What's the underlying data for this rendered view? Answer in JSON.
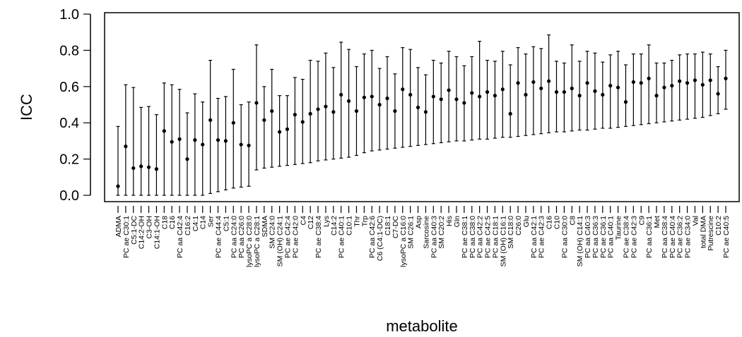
{
  "chart_data": {
    "type": "scatter",
    "subtype": "point-with-error-bars",
    "title": "",
    "xlabel": "metabolite",
    "ylabel": "ICC",
    "ylim": [
      0,
      1
    ],
    "yticks": [
      "0.0",
      "0.2",
      "0.4",
      "0.6",
      "0.8",
      "1.0"
    ],
    "grid": false,
    "legend": "none",
    "categories": [
      "ADMA",
      "PC ae C30:1",
      "C5:1-DC",
      "C14:2-OH",
      "C3-OH",
      "C14:1-OH",
      "C18",
      "C16",
      "PC aa C42:4",
      "C16:2",
      "C4:1",
      "C14",
      "Ser",
      "PC ae C44:4",
      "C5:1",
      "PC aa C24:0",
      "PC aa C26:0",
      "lysoPC a C28:0",
      "lysoPC a C28:1",
      "SDMA",
      "SM C24:0",
      "SM (OH) C24:1",
      "PC ae C42:4",
      "PC ae C42:0",
      "C4",
      "C12",
      "PC ae C38:4",
      "Lys",
      "C14:2",
      "PC ae C40:1",
      "C10:1",
      "Thr",
      "Trp",
      "PC aa C42:6",
      "C6 (C4:1-DC)",
      "C18:1",
      "C7-DC",
      "lysoPC a C16:0",
      "SM C26:1",
      "Asp",
      "Sarcosine",
      "PC aa C40:3",
      "SM C20:2",
      "His",
      "Gln",
      "PC ae C38:1",
      "PC aa C38:0",
      "PC aa C42:2",
      "PC ae C42:5",
      "PC aa C18:1",
      "SM (OH) C16:1",
      "SM C18:0",
      "C26:0",
      "Glu",
      "PC aa C42:1",
      "PC ae C42:3",
      "C16",
      "C10",
      "PC aa C30:0",
      "C8",
      "SM (OH) C14:1",
      "PC aa C40:3",
      "PC aa C36:3",
      "PC ae C36:1",
      "PC aa C40:1",
      "Taurine",
      "PC ae C38:4",
      "PC ae C42:3",
      "C9",
      "PC aa C36:1",
      "Met",
      "PC aa C38:4",
      "PC ae C40:4",
      "PC ae C36:2",
      "PC ae C34:0",
      "Val",
      "total DMA",
      "Putrescine",
      "C10:2",
      "PC ae C40:5"
    ],
    "series": [
      {
        "values": [
          0.05,
          0.27,
          0.15,
          0.16,
          0.155,
          0.145,
          0.355,
          0.295,
          0.31,
          0.2,
          0.305,
          0.28,
          0.415,
          0.305,
          0.3,
          0.4,
          0.28,
          0.275,
          0.51,
          0.415,
          0.465,
          0.35,
          0.365,
          0.445,
          0.405,
          0.45,
          0.475,
          0.49,
          0.46,
          0.555,
          0.52,
          0.465,
          0.54,
          0.545,
          0.5,
          0.535,
          0.465,
          0.585,
          0.555,
          0.485,
          0.46,
          0.545,
          0.53,
          0.58,
          0.53,
          0.51,
          0.565,
          0.545,
          0.57,
          0.55,
          0.585,
          0.45,
          0.62,
          0.555,
          0.625,
          0.59,
          0.63,
          0.57,
          0.57,
          0.59,
          0.55,
          0.62,
          0.575,
          0.555,
          0.605,
          0.595,
          0.515,
          0.625,
          0.62,
          0.645,
          0.55,
          0.595,
          0.605,
          0.63,
          0.62,
          0.635,
          0.61,
          0.635,
          0.56,
          0.645
        ],
        "lower": [
          0.0,
          0.0,
          0.0,
          0.0,
          0.0,
          0.0,
          0.0,
          0.0,
          0.0,
          0.0,
          0.0,
          0.0,
          0.01,
          0.02,
          0.03,
          0.04,
          0.045,
          0.05,
          0.14,
          0.15,
          0.155,
          0.16,
          0.165,
          0.17,
          0.175,
          0.18,
          0.19,
          0.195,
          0.2,
          0.205,
          0.21,
          0.22,
          0.235,
          0.245,
          0.25,
          0.255,
          0.26,
          0.265,
          0.27,
          0.275,
          0.28,
          0.285,
          0.29,
          0.295,
          0.3,
          0.3,
          0.305,
          0.31,
          0.31,
          0.315,
          0.32,
          0.32,
          0.325,
          0.33,
          0.335,
          0.34,
          0.345,
          0.35,
          0.35,
          0.355,
          0.36,
          0.36,
          0.365,
          0.37,
          0.37,
          0.375,
          0.38,
          0.385,
          0.39,
          0.395,
          0.4,
          0.405,
          0.41,
          0.415,
          0.42,
          0.425,
          0.43,
          0.44,
          0.45,
          0.475
        ],
        "upper": [
          0.38,
          0.61,
          0.595,
          0.485,
          0.49,
          0.445,
          0.62,
          0.61,
          0.585,
          0.455,
          0.56,
          0.515,
          0.745,
          0.535,
          0.545,
          0.695,
          0.5,
          0.515,
          0.83,
          0.6,
          0.695,
          0.55,
          0.55,
          0.65,
          0.64,
          0.745,
          0.74,
          0.785,
          0.705,
          0.845,
          0.805,
          0.71,
          0.78,
          0.8,
          0.7,
          0.765,
          0.67,
          0.815,
          0.805,
          0.705,
          0.665,
          0.745,
          0.73,
          0.795,
          0.765,
          0.715,
          0.765,
          0.85,
          0.745,
          0.74,
          0.795,
          0.72,
          0.815,
          0.78,
          0.82,
          0.81,
          0.885,
          0.74,
          0.73,
          0.83,
          0.74,
          0.795,
          0.785,
          0.735,
          0.775,
          0.795,
          0.72,
          0.78,
          0.78,
          0.83,
          0.73,
          0.73,
          0.745,
          0.775,
          0.78,
          0.78,
          0.79,
          0.78,
          0.71,
          0.8
        ]
      }
    ]
  }
}
